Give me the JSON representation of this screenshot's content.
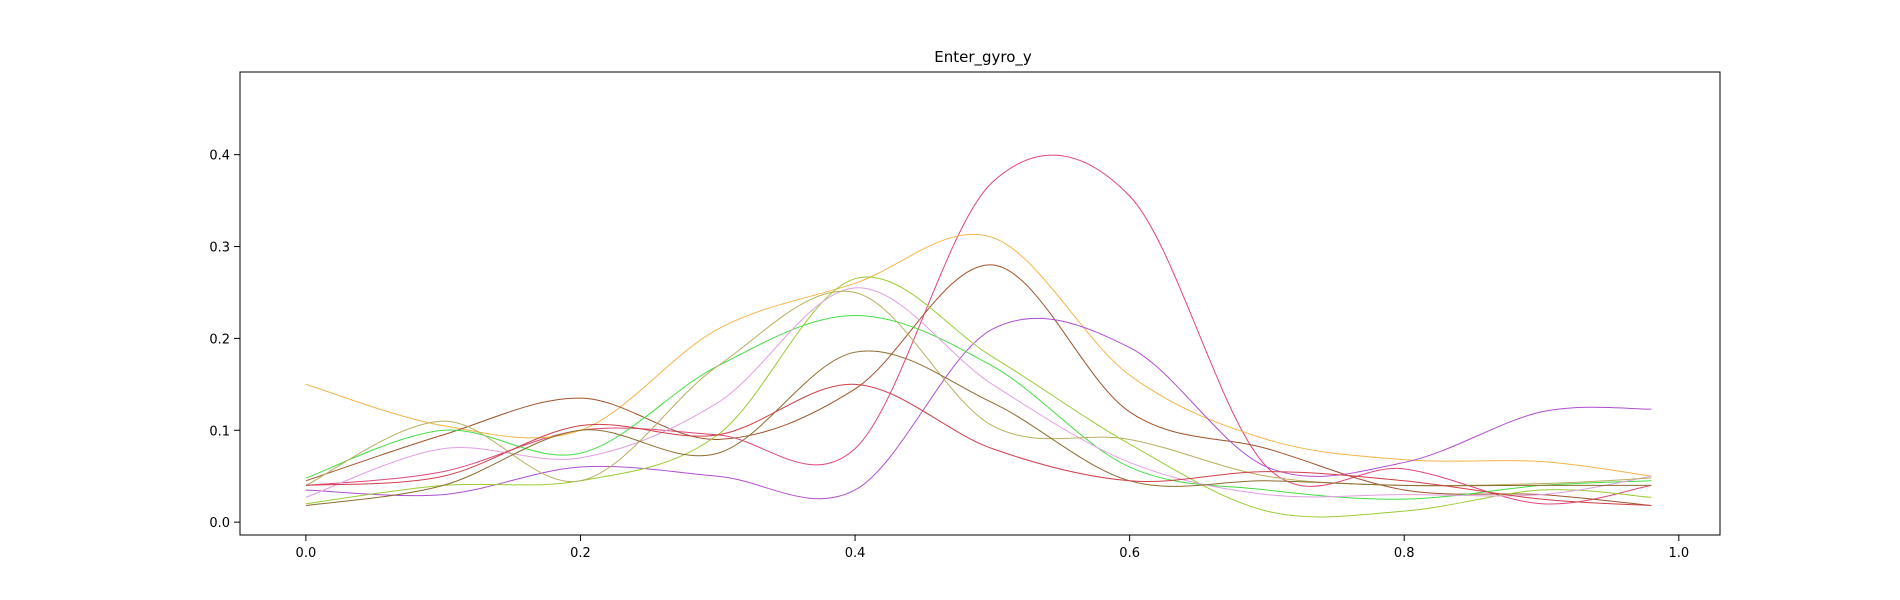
{
  "chart_data": {
    "type": "line",
    "title": "Enter_gyro_y",
    "xlabel": "",
    "ylabel": "",
    "xlim": [
      -0.048,
      1.03
    ],
    "ylim": [
      -0.014,
      0.49
    ],
    "xticks": [
      0.0,
      0.2,
      0.4,
      0.6,
      0.8,
      1.0
    ],
    "xtick_labels": [
      "0.0",
      "0.2",
      "0.4",
      "0.6",
      "0.8",
      "1.0"
    ],
    "yticks": [
      0.0,
      0.1,
      0.2,
      0.3,
      0.4
    ],
    "ytick_labels": [
      "0.0",
      "0.1",
      "0.2",
      "0.3",
      "0.4"
    ],
    "grid": false,
    "x": [
      0.0,
      0.1,
      0.2,
      0.3,
      0.4,
      0.5,
      0.6,
      0.7,
      0.8,
      0.9,
      0.98
    ],
    "series": [
      {
        "color": "#e0457a",
        "values": [
          0.04,
          0.055,
          0.1,
          0.095,
          0.08,
          0.37,
          0.355,
          0.06,
          0.058,
          0.02,
          0.04
        ]
      },
      {
        "color": "#f4b54a",
        "values": [
          0.15,
          0.105,
          0.1,
          0.21,
          0.26,
          0.31,
          0.16,
          0.09,
          0.068,
          0.066,
          0.05
        ]
      },
      {
        "color": "#a0522d",
        "values": [
          0.045,
          0.095,
          0.135,
          0.09,
          0.145,
          0.28,
          0.12,
          0.08,
          0.035,
          0.03,
          0.018
        ]
      },
      {
        "color": "#b04fcf",
        "values": [
          0.035,
          0.03,
          0.06,
          0.05,
          0.035,
          0.21,
          0.19,
          0.06,
          0.065,
          0.12,
          0.123
        ]
      },
      {
        "color": "#44dd44",
        "values": [
          0.048,
          0.1,
          0.075,
          0.17,
          0.225,
          0.17,
          0.06,
          0.035,
          0.025,
          0.04,
          0.045
        ]
      },
      {
        "color": "#9acd32",
        "values": [
          0.02,
          0.04,
          0.045,
          0.095,
          0.265,
          0.18,
          0.085,
          0.012,
          0.012,
          0.035,
          0.027
        ]
      },
      {
        "color": "#e0a0e0",
        "values": [
          0.027,
          0.08,
          0.07,
          0.13,
          0.255,
          0.15,
          0.065,
          0.03,
          0.03,
          0.03,
          0.05
        ]
      },
      {
        "color": "#b8b060",
        "values": [
          0.04,
          0.11,
          0.045,
          0.17,
          0.25,
          0.105,
          0.09,
          0.05,
          0.04,
          0.042,
          0.048
        ]
      },
      {
        "color": "#8b6d2f",
        "values": [
          0.018,
          0.04,
          0.1,
          0.075,
          0.185,
          0.13,
          0.045,
          0.045,
          0.04,
          0.04,
          0.04
        ]
      },
      {
        "color": "#d0404a",
        "values": [
          0.04,
          0.05,
          0.105,
          0.095,
          0.15,
          0.08,
          0.045,
          0.055,
          0.045,
          0.025,
          0.018
        ]
      }
    ]
  }
}
